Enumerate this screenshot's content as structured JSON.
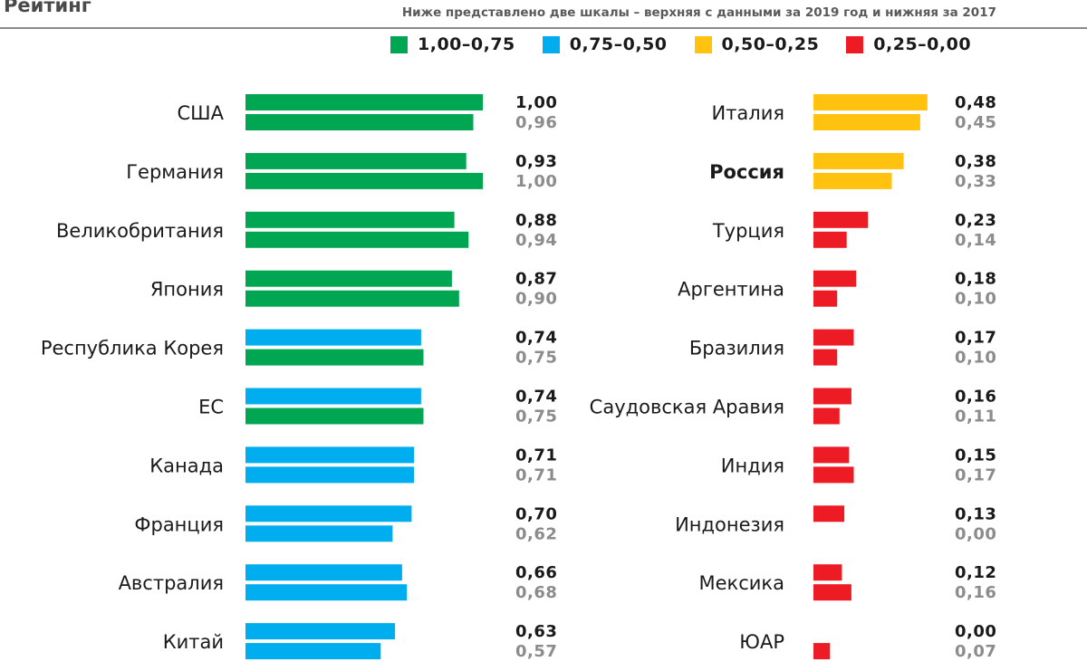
{
  "chart_data": {
    "type": "bar",
    "title": "Рейтинг",
    "subtitle": "Ниже представлено две шкалы – верхняя с данными за 2019 год и нижняя за 2017",
    "legend": [
      {
        "label": "1,00–0,75",
        "color": "#00a651"
      },
      {
        "label": "0,75–0,50",
        "color": "#00aeef"
      },
      {
        "label": "0,50–0,25",
        "color": "#ffc20e"
      },
      {
        "label": "0,25–0,00",
        "color": "#ed1c24"
      }
    ],
    "series": [
      {
        "name": "2019",
        "order": "top"
      },
      {
        "name": "2017",
        "order": "bottom"
      }
    ],
    "xlim": [
      0,
      1
    ],
    "panels": [
      {
        "categories": [
          "США",
          "Германия",
          "Великобритания",
          "Япония",
          "Республика Корея",
          "ЕС",
          "Канада",
          "Франция",
          "Австралия",
          "Китай"
        ],
        "values_2019": [
          1.0,
          0.93,
          0.88,
          0.87,
          0.74,
          0.74,
          0.71,
          0.7,
          0.66,
          0.63
        ],
        "values_2017": [
          0.96,
          1.0,
          0.94,
          0.9,
          0.75,
          0.75,
          0.71,
          0.62,
          0.68,
          0.57
        ],
        "labels_2019": [
          "1,00",
          "0,93",
          "0,88",
          "0,87",
          "0,74",
          "0,74",
          "0,71",
          "0,70",
          "0,66",
          "0,63"
        ],
        "labels_2017": [
          "0,96",
          "1,00",
          "0,94",
          "0,90",
          "0,75",
          "0,75",
          "0,71",
          "0,62",
          "0,68",
          "0,57"
        ],
        "bold": []
      },
      {
        "categories": [
          "Италия",
          "Россия",
          "Турция",
          "Аргентина",
          "Бразилия",
          "Саудовская Аравия",
          "Индия",
          "Индонезия",
          "Мексика",
          "ЮАР"
        ],
        "values_2019": [
          0.48,
          0.38,
          0.23,
          0.18,
          0.17,
          0.16,
          0.15,
          0.13,
          0.12,
          0.0
        ],
        "values_2017": [
          0.45,
          0.33,
          0.14,
          0.1,
          0.1,
          0.11,
          0.17,
          0.0,
          0.16,
          0.07
        ],
        "labels_2019": [
          "0,48",
          "0,38",
          "0,23",
          "0,18",
          "0,17",
          "0,16",
          "0,15",
          "0,13",
          "0,12",
          "0,00"
        ],
        "labels_2017": [
          "0,45",
          "0,33",
          "0,14",
          "0,10",
          "0,10",
          "0,11",
          "0,17",
          "0,00",
          "0,16",
          "0,07"
        ],
        "bold": [
          "Россия"
        ]
      }
    ]
  }
}
